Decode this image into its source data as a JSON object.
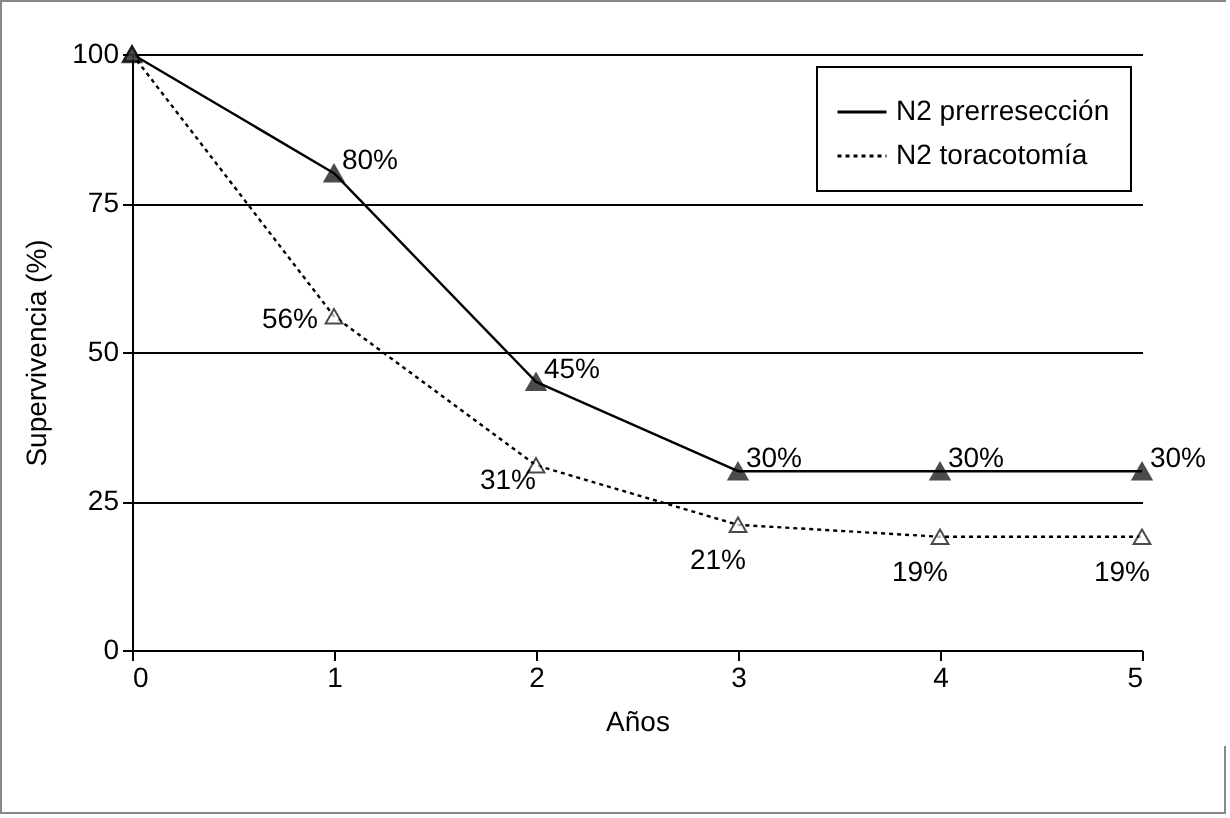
{
  "chart_data": {
    "type": "line",
    "xlabel": "Años",
    "ylabel": "Supervivencia (%)",
    "x": [
      0,
      1,
      2,
      3,
      4,
      5
    ],
    "series": [
      {
        "name": "N2 prerresección",
        "color": "#000000",
        "line_style": "solid",
        "values": [
          100,
          80,
          45,
          30,
          30,
          30
        ],
        "value_labels": [
          null,
          "80%",
          "45%",
          "30%",
          "30%",
          "30%"
        ]
      },
      {
        "name": "N2 toracotomía",
        "color": "#000000",
        "line_style": "dotted",
        "values": [
          100,
          56,
          31,
          21,
          19,
          19
        ],
        "value_labels": [
          null,
          "56%",
          "31%",
          "21%",
          "19%",
          "19%"
        ]
      }
    ],
    "xlim": [
      0,
      5
    ],
    "xticks": [
      0,
      1,
      2,
      3,
      4,
      5
    ],
    "ylim": [
      0,
      100
    ],
    "yticks": [
      0,
      25,
      50,
      75,
      100
    ],
    "grid": "y",
    "legend": "top right",
    "marker": "triangle"
  }
}
